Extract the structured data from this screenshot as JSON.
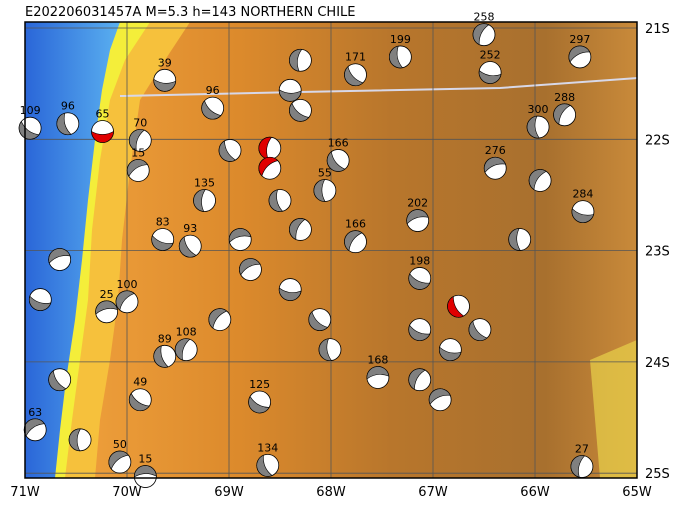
{
  "header": {
    "title": "E202206031457A  M=5.3  h=143  NORTHERN  CHILE"
  },
  "axes": {
    "lon_ticks": [
      {
        "value": -71,
        "label": "71W"
      },
      {
        "value": -70,
        "label": "70W"
      },
      {
        "value": -69,
        "label": "69W"
      },
      {
        "value": -68,
        "label": "68W"
      },
      {
        "value": -67,
        "label": "67W"
      },
      {
        "value": -66,
        "label": "66W"
      },
      {
        "value": -65,
        "label": "65W"
      }
    ],
    "lat_ticks": [
      {
        "value": -21,
        "label": "21S"
      },
      {
        "value": -22,
        "label": "22S"
      },
      {
        "value": -23,
        "label": "23S"
      },
      {
        "value": -24,
        "label": "24S"
      },
      {
        "value": -25,
        "label": "25S"
      }
    ]
  },
  "events": [
    {
      "lon": -70.24,
      "lat": -21.93,
      "label": "65",
      "color": "#e00000"
    },
    {
      "lon": -70.95,
      "lat": -21.9,
      "label": "109",
      "color": "#808080"
    },
    {
      "lon": -70.58,
      "lat": -21.86,
      "label": "96",
      "color": "#808080"
    },
    {
      "lon": -69.87,
      "lat": -22.01,
      "label": "70",
      "color": "#808080"
    },
    {
      "lon": -69.89,
      "lat": -22.28,
      "label": "15",
      "color": "#808080"
    },
    {
      "lon": -69.63,
      "lat": -21.47,
      "label": "39",
      "color": "#808080"
    },
    {
      "lon": -69.16,
      "lat": -21.72,
      "label": "96",
      "color": "#808080"
    },
    {
      "lon": -67.32,
      "lat": -21.26,
      "label": "199",
      "color": "#808080"
    },
    {
      "lon": -66.5,
      "lat": -21.06,
      "label": "258",
      "color": "#808080"
    },
    {
      "lon": -65.56,
      "lat": -21.26,
      "label": "297",
      "color": "#808080"
    },
    {
      "lon": -66.44,
      "lat": -21.4,
      "label": "252",
      "color": "#808080"
    },
    {
      "lon": -67.76,
      "lat": -21.42,
      "label": "171",
      "color": "#808080"
    },
    {
      "lon": -65.97,
      "lat": -21.89,
      "label": "300",
      "color": "#808080"
    },
    {
      "lon": -65.71,
      "lat": -21.78,
      "label": "288",
      "color": "#808080"
    },
    {
      "lon": -66.39,
      "lat": -22.26,
      "label": "276",
      "color": "#808080"
    },
    {
      "lon": -65.53,
      "lat": -22.65,
      "label": "284",
      "color": "#808080"
    },
    {
      "lon": -67.93,
      "lat": -22.19,
      "label": "166",
      "color": "#808080"
    },
    {
      "lon": -68.06,
      "lat": -22.46,
      "label": "55",
      "color": "#808080"
    },
    {
      "lon": -67.76,
      "lat": -22.92,
      "label": "166",
      "color": "#808080"
    },
    {
      "lon": -67.15,
      "lat": -22.73,
      "label": "202",
      "color": "#808080"
    },
    {
      "lon": -69.65,
      "lat": -22.9,
      "label": "83",
      "color": "#808080"
    },
    {
      "lon": -69.38,
      "lat": -22.96,
      "label": "93",
      "color": "#808080"
    },
    {
      "lon": -69.24,
      "lat": -22.55,
      "label": "135",
      "color": "#808080"
    },
    {
      "lon": -70.0,
      "lat": -23.46,
      "label": "100",
      "color": "#808080"
    },
    {
      "lon": -70.2,
      "lat": -23.55,
      "label": "25",
      "color": "#808080"
    },
    {
      "lon": -67.13,
      "lat": -23.25,
      "label": "198",
      "color": "#808080"
    },
    {
      "lon": -66.75,
      "lat": -23.5,
      "label": null,
      "color": "#e00000"
    },
    {
      "lon": -68.6,
      "lat": -22.08,
      "label": null,
      "color": "#e00000"
    },
    {
      "lon": -68.6,
      "lat": -22.26,
      "label": null,
      "color": "#e00000"
    },
    {
      "lon": -67.54,
      "lat": -24.14,
      "label": "168",
      "color": "#808080"
    },
    {
      "lon": -68.7,
      "lat": -24.36,
      "label": "125",
      "color": "#808080"
    },
    {
      "lon": -68.62,
      "lat": -24.93,
      "label": "134",
      "color": "#808080"
    },
    {
      "lon": -65.54,
      "lat": -24.94,
      "label": "27",
      "color": "#808080"
    },
    {
      "lon": -70.07,
      "lat": -24.9,
      "label": "50",
      "color": "#808080"
    },
    {
      "lon": -69.82,
      "lat": -25.03,
      "label": "15",
      "color": "#808080"
    },
    {
      "lon": -69.87,
      "lat": -24.34,
      "label": "49",
      "color": "#808080"
    },
    {
      "lon": -69.63,
      "lat": -23.95,
      "label": "89",
      "color": "#808080"
    },
    {
      "lon": -69.42,
      "lat": -23.89,
      "label": "108",
      "color": "#808080"
    },
    {
      "lon": -70.9,
      "lat": -24.61,
      "label": "63",
      "color": "#808080"
    },
    {
      "lon": -68.4,
      "lat": -21.56,
      "label": null,
      "color": "#808080"
    },
    {
      "lon": -68.3,
      "lat": -21.74,
      "label": null,
      "color": "#808080"
    },
    {
      "lon": -68.5,
      "lat": -22.55,
      "label": null,
      "color": "#808080"
    },
    {
      "lon": -68.3,
      "lat": -22.81,
      "label": null,
      "color": "#808080"
    },
    {
      "lon": -68.79,
      "lat": -23.17,
      "label": null,
      "color": "#808080"
    },
    {
      "lon": -68.4,
      "lat": -23.35,
      "label": null,
      "color": "#808080"
    },
    {
      "lon": -68.11,
      "lat": -23.62,
      "label": null,
      "color": "#808080"
    },
    {
      "lon": -68.01,
      "lat": -23.89,
      "label": null,
      "color": "#808080"
    },
    {
      "lon": -67.13,
      "lat": -24.16,
      "label": null,
      "color": "#808080"
    },
    {
      "lon": -66.93,
      "lat": -24.34,
      "label": null,
      "color": "#808080"
    },
    {
      "lon": -66.83,
      "lat": -23.89,
      "label": null,
      "color": "#808080"
    },
    {
      "lon": -66.54,
      "lat": -23.71,
      "label": null,
      "color": "#808080"
    },
    {
      "lon": -66.15,
      "lat": -22.9,
      "label": null,
      "color": "#808080"
    },
    {
      "lon": -65.95,
      "lat": -22.37,
      "label": null,
      "color": "#808080"
    },
    {
      "lon": -70.66,
      "lat": -23.08,
      "label": null,
      "color": "#808080"
    },
    {
      "lon": -70.85,
      "lat": -23.44,
      "label": null,
      "color": "#808080"
    },
    {
      "lon": -70.66,
      "lat": -24.16,
      "label": null,
      "color": "#808080"
    },
    {
      "lon": -70.46,
      "lat": -24.7,
      "label": null,
      "color": "#808080"
    },
    {
      "lon": -69.09,
      "lat": -23.62,
      "label": null,
      "color": "#808080"
    },
    {
      "lon": -68.89,
      "lat": -22.9,
      "label": null,
      "color": "#808080"
    },
    {
      "lon": -67.13,
      "lat": -23.71,
      "label": null,
      "color": "#808080"
    },
    {
      "lon": -68.99,
      "lat": -22.1,
      "label": null,
      "color": "#808080"
    },
    {
      "lon": -68.3,
      "lat": -21.29,
      "label": null,
      "color": "#808080"
    }
  ]
}
